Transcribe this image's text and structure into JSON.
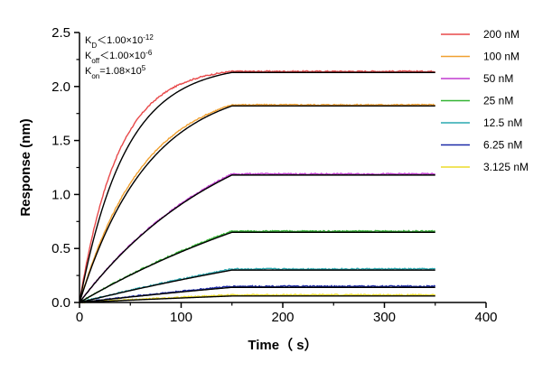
{
  "chart_data": {
    "type": "line",
    "title": "",
    "xlabel": "Time（ s）",
    "ylabel": "Response (nm)",
    "xlim": [
      0,
      400
    ],
    "ylim": [
      0,
      2.5
    ],
    "x_ticks": [
      "0",
      "100",
      "200",
      "300",
      "400"
    ],
    "y_ticks": [
      "0.0",
      "0.5",
      "1.0",
      "1.5",
      "2.0",
      "2.5"
    ],
    "grid": false,
    "legend_position": "top-right",
    "association_end": 150,
    "time_end": 350,
    "annotations": [
      {
        "main": "K",
        "sub": "D",
        "rest": "＜1.00×10",
        "sup": "-12"
      },
      {
        "main": "K",
        "sub": "off",
        "rest": "＜1.00×10",
        "sup": "-6"
      },
      {
        "main": "K",
        "sub": "on",
        "rest": "=1.08×10",
        "sup": "5"
      }
    ],
    "series": [
      {
        "name": "200 nM",
        "color": "#e8494a",
        "plateau": 2.14,
        "tau": 38,
        "fit_tau": 45
      },
      {
        "name": "100 nM",
        "color": "#f0a030",
        "plateau": 1.83,
        "tau": 63,
        "fit_tau": 68
      },
      {
        "name": "50 nM",
        "color": "#c03ad0",
        "plateau": 1.19,
        "tau": 150,
        "fit_tau": 150
      },
      {
        "name": "25 nM",
        "color": "#32b432",
        "plateau": 0.66,
        "tau": 300,
        "fit_tau": 300
      },
      {
        "name": "12.5 nM",
        "color": "#29a8b0",
        "plateau": 0.31,
        "tau": 500,
        "fit_tau": 500
      },
      {
        "name": "6.25 nM",
        "color": "#1c2aa8",
        "plateau": 0.15,
        "tau": 600,
        "fit_tau": 600
      },
      {
        "name": "3.125 nM",
        "color": "#ecdc2a",
        "plateau": 0.07,
        "tau": 700,
        "fit_tau": 700
      }
    ],
    "fit_color": "#000000"
  }
}
